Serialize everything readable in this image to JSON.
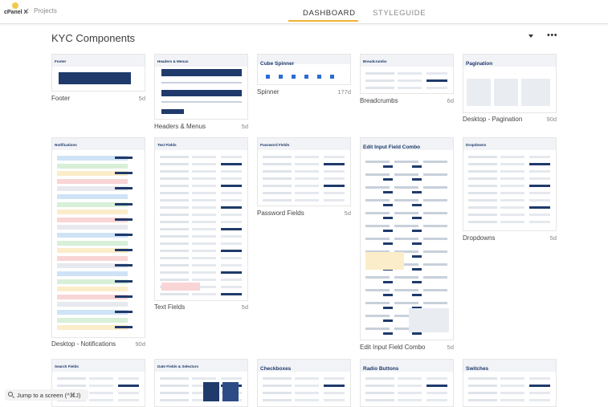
{
  "header": {
    "logo_text": "cPanel X",
    "back_glyph": "‹",
    "breadcrumb": "Projects",
    "tabs": [
      "DASHBOARD",
      "STYLEGUIDE"
    ],
    "active_tab": "DASHBOARD",
    "accent_color": "#f2b233"
  },
  "section": {
    "title": "KYC Components",
    "more_glyph": "•••"
  },
  "cards": [
    {
      "label": "Footer",
      "age": "5d",
      "thumb_title": "Footer"
    },
    {
      "label": "Headers & Menus",
      "age": "5d",
      "thumb_title": "Headers & Menus"
    },
    {
      "label": "Spinner",
      "age": "177d",
      "thumb_title": "Cube Spinner"
    },
    {
      "label": "Breadcrumbs",
      "age": "6d",
      "thumb_title": "Breadcrumbs"
    },
    {
      "label": "Desktop - Pagination",
      "age": "90d",
      "thumb_title": "Pagination"
    },
    {
      "label": "Desktop - Notifications",
      "age": "90d",
      "thumb_title": "Notifications"
    },
    {
      "label": "Text Fields",
      "age": "5d",
      "thumb_title": "Text Fields"
    },
    {
      "label": "Password Fields",
      "age": "5d",
      "thumb_title": "Password Fields"
    },
    {
      "label": "Edit Input Field Combo",
      "age": "5d",
      "thumb_title": "Edit Input Field Combo"
    },
    {
      "label": "Dropdowns",
      "age": "5d",
      "thumb_title": "Dropdowns"
    },
    {
      "label": "",
      "age": "",
      "thumb_title": "Search Fields"
    },
    {
      "label": "",
      "age": "",
      "thumb_title": "Date Fields & Selectors"
    },
    {
      "label": "",
      "age": "",
      "thumb_title": "Checkboxes"
    },
    {
      "label": "",
      "age": "",
      "thumb_title": "Radio Buttons"
    },
    {
      "label": "",
      "age": "",
      "thumb_title": "Switches"
    }
  ],
  "jump": {
    "text": "Jump to a screen (^⌘J)",
    "icon": "search-icon"
  },
  "colors": {
    "navy": "#1f3a6b",
    "thumb_header": "#f1f3f6"
  }
}
